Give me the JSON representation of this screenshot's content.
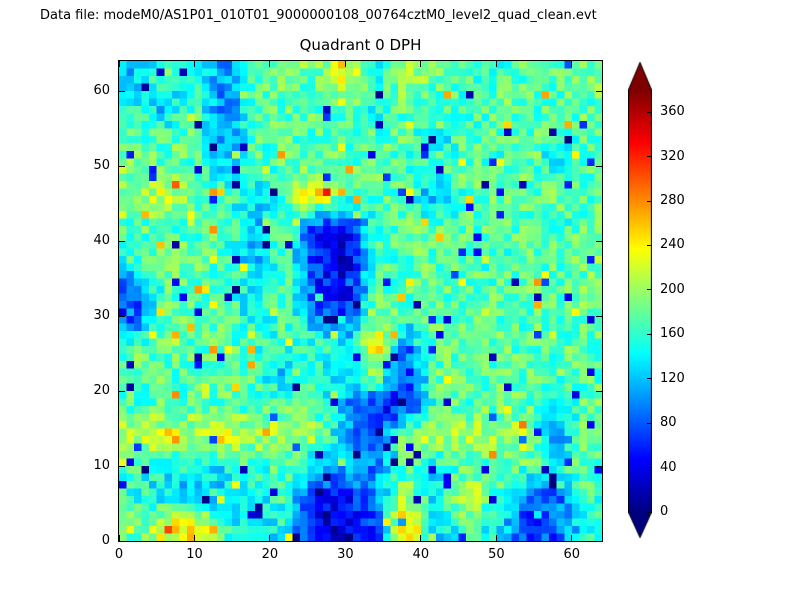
{
  "header": {
    "data_file_label": "Data file: modeM0/AS1P01_010T01_9000000108_00764cztM0_level2_quad_clean.evt"
  },
  "chart_data": {
    "type": "heatmap",
    "title": "Quadrant 0 DPH",
    "xlabel": "",
    "ylabel": "",
    "xlim": [
      0,
      64
    ],
    "ylim": [
      0,
      64
    ],
    "x_ticks": [
      0,
      10,
      20,
      30,
      40,
      50,
      60
    ],
    "y_ticks": [
      0,
      10,
      20,
      30,
      40,
      50,
      60
    ],
    "colormap": "jet",
    "colorbar": {
      "ticks": [
        0,
        40,
        80,
        120,
        160,
        200,
        240,
        280,
        320,
        360
      ],
      "vmin": 0,
      "vmax": 380,
      "extend": "both"
    },
    "grid": {
      "size": 64,
      "downsampled": 16,
      "row_order": "top-to-bottom",
      "values": [
        [
          120,
          170,
          140,
          100,
          160,
          200,
          175,
          240,
          150,
          220,
          175,
          175,
          165,
          175,
          170,
          190
        ],
        [
          150,
          110,
          175,
          80,
          170,
          175,
          170,
          160,
          140,
          175,
          175,
          160,
          175,
          175,
          170,
          175
        ],
        [
          170,
          175,
          175,
          90,
          170,
          175,
          175,
          175,
          170,
          175,
          130,
          175,
          175,
          175,
          160,
          175
        ],
        [
          190,
          175,
          175,
          120,
          170,
          175,
          175,
          175,
          175,
          165,
          175,
          175,
          160,
          175,
          130,
          175
        ],
        [
          200,
          220,
          190,
          175,
          130,
          175,
          260,
          180,
          175,
          175,
          100,
          175,
          175,
          175,
          185,
          175
        ],
        [
          170,
          175,
          175,
          170,
          120,
          175,
          70,
          30,
          160,
          175,
          175,
          175,
          175,
          175,
          160,
          175
        ],
        [
          170,
          175,
          175,
          170,
          120,
          175,
          60,
          25,
          160,
          175,
          175,
          175,
          150,
          175,
          175,
          185
        ],
        [
          90,
          175,
          175,
          170,
          130,
          175,
          70,
          30,
          165,
          175,
          175,
          175,
          175,
          175,
          175,
          180
        ],
        [
          60,
          170,
          175,
          175,
          140,
          175,
          100,
          60,
          200,
          175,
          175,
          175,
          175,
          175,
          175,
          175
        ],
        [
          180,
          175,
          175,
          175,
          165,
          150,
          170,
          130,
          260,
          80,
          175,
          175,
          175,
          175,
          175,
          175
        ],
        [
          170,
          175,
          170,
          175,
          170,
          120,
          170,
          120,
          200,
          60,
          175,
          175,
          175,
          175,
          175,
          175
        ],
        [
          170,
          175,
          175,
          175,
          170,
          175,
          175,
          110,
          50,
          60,
          170,
          175,
          175,
          175,
          150,
          175
        ],
        [
          220,
          220,
          215,
          220,
          210,
          215,
          200,
          120,
          70,
          200,
          215,
          210,
          210,
          215,
          80,
          190
        ],
        [
          165,
          150,
          140,
          140,
          165,
          170,
          130,
          120,
          90,
          170,
          140,
          175,
          175,
          175,
          160,
          175
        ],
        [
          160,
          130,
          120,
          130,
          140,
          165,
          60,
          50,
          110,
          200,
          130,
          220,
          170,
          90,
          80,
          170
        ],
        [
          180,
          230,
          240,
          160,
          130,
          150,
          30,
          25,
          60,
          280,
          120,
          170,
          140,
          70,
          80,
          150
        ]
      ]
    },
    "noise_amplitude": 32
  }
}
